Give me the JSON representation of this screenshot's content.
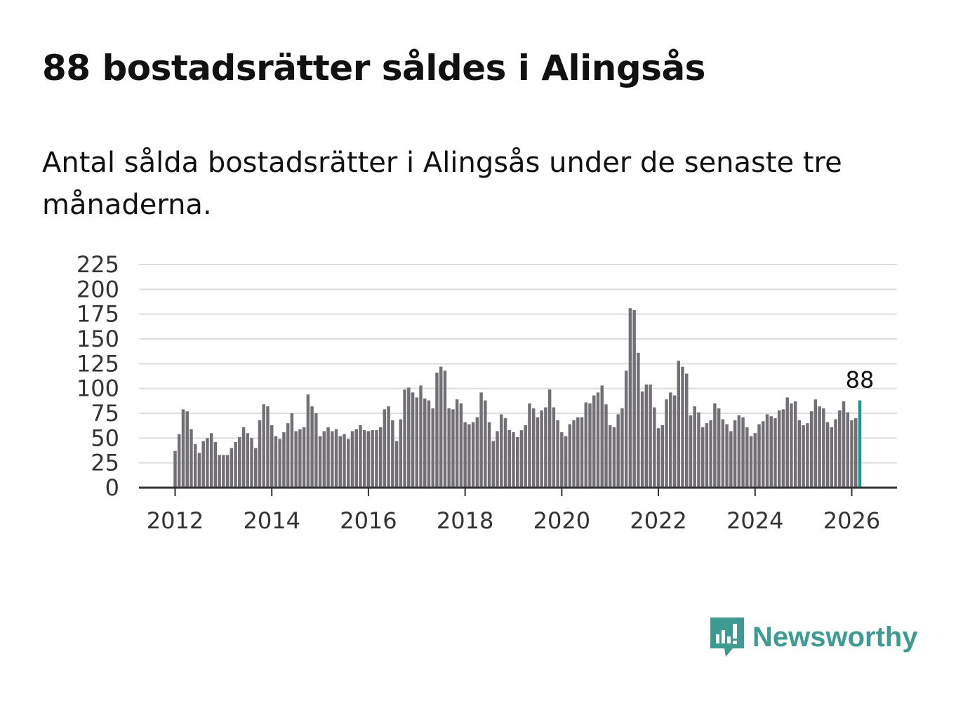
{
  "title": "88 bostadsrätter såldes i Alingsås",
  "subtitle": "Antal sålda bostadsrätter i Alingsås under de senaste tre månaderna.",
  "brand": {
    "name": "Newsworthy",
    "color": "#3e9b92",
    "icon": "newsworthy-logo-icon"
  },
  "colors": {
    "bar": "#727075",
    "highlight": "#149a93",
    "grid": "#dddddd",
    "axis": "#333333"
  },
  "chart_data": {
    "type": "bar",
    "title": "88 bostadsrätter såldes i Alingsås",
    "xlabel": "",
    "ylabel": "",
    "ylim": [
      0,
      225
    ],
    "yticks": [
      0,
      25,
      50,
      75,
      100,
      125,
      150,
      175,
      200,
      225
    ],
    "xticks": [
      "2012",
      "2014",
      "2016",
      "2018",
      "2020",
      "2022",
      "2024",
      "2026"
    ],
    "grid": true,
    "start": "2012-01",
    "highlight_label": "88",
    "values": [
      37,
      54,
      79,
      77,
      59,
      44,
      35,
      47,
      50,
      55,
      46,
      33,
      33,
      33,
      40,
      46,
      51,
      61,
      55,
      50,
      40,
      68,
      84,
      82,
      63,
      52,
      49,
      56,
      65,
      75,
      57,
      59,
      61,
      94,
      82,
      75,
      52,
      57,
      61,
      57,
      59,
      52,
      54,
      49,
      57,
      59,
      63,
      58,
      57,
      58,
      58,
      61,
      79,
      82,
      68,
      47,
      69,
      99,
      101,
      96,
      91,
      103,
      90,
      88,
      80,
      116,
      122,
      118,
      80,
      79,
      89,
      85,
      66,
      64,
      66,
      71,
      96,
      88,
      66,
      47,
      57,
      74,
      70,
      58,
      56,
      51,
      58,
      63,
      85,
      80,
      71,
      78,
      81,
      99,
      81,
      68,
      56,
      52,
      64,
      68,
      71,
      71,
      86,
      85,
      93,
      96,
      103,
      84,
      63,
      61,
      74,
      80,
      118,
      181,
      179,
      136,
      97,
      104,
      104,
      81,
      60,
      63,
      89,
      96,
      93,
      128,
      122,
      115,
      73,
      82,
      76,
      61,
      65,
      68,
      85,
      80,
      69,
      64,
      57,
      68,
      73,
      71,
      61,
      52,
      55,
      64,
      67,
      74,
      72,
      70,
      78,
      79,
      91,
      85,
      87,
      68,
      63,
      65,
      77,
      89,
      82,
      80,
      66,
      61,
      69,
      78,
      87,
      76,
      68,
      70,
      88
    ]
  }
}
